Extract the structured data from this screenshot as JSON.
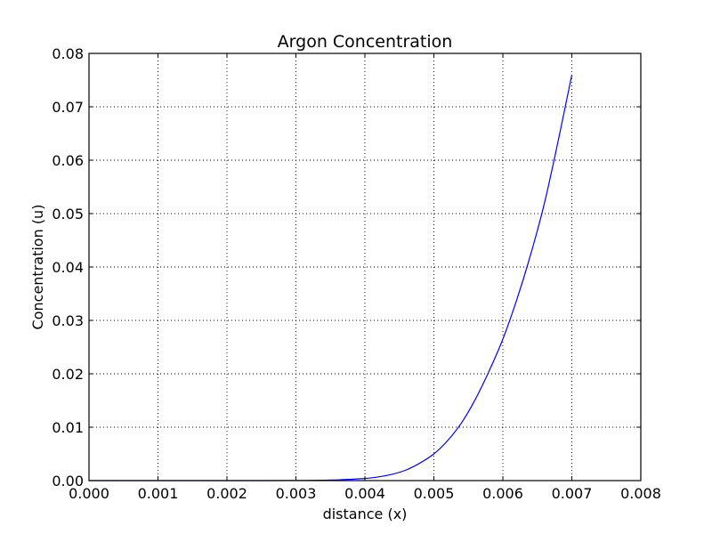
{
  "chart_data": {
    "type": "line",
    "title": "Argon Concentration",
    "xlabel": "distance (x)",
    "ylabel": "Concentration (u)",
    "xlim": [
      0.0,
      0.008
    ],
    "ylim": [
      0.0,
      0.08
    ],
    "x_ticks": [
      0.0,
      0.001,
      0.002,
      0.003,
      0.004,
      0.005,
      0.006,
      0.007,
      0.008
    ],
    "x_tick_labels": [
      "0.000",
      "0.001",
      "0.002",
      "0.003",
      "0.004",
      "0.005",
      "0.006",
      "0.007",
      "0.008"
    ],
    "y_ticks": [
      0.0,
      0.01,
      0.02,
      0.03,
      0.04,
      0.05,
      0.06,
      0.07,
      0.08
    ],
    "y_tick_labels": [
      "0.00",
      "0.01",
      "0.02",
      "0.03",
      "0.04",
      "0.05",
      "0.06",
      "0.07",
      "0.08"
    ],
    "grid": true,
    "series": [
      {
        "color": "#0000ff",
        "x": [
          0.0,
          0.0005,
          0.001,
          0.0015,
          0.002,
          0.0025,
          0.003,
          0.0035,
          0.004,
          0.0042,
          0.0044,
          0.0046,
          0.0048,
          0.005,
          0.0052,
          0.0054,
          0.0056,
          0.0058,
          0.006,
          0.0062,
          0.0064,
          0.0066,
          0.0068,
          0.007
        ],
        "y": [
          0.0,
          0.0,
          0.0,
          0.0,
          0.0,
          0.0,
          2e-05,
          0.0001,
          0.0004,
          0.0007,
          0.0012,
          0.002,
          0.0033,
          0.005,
          0.0075,
          0.0108,
          0.0152,
          0.0205,
          0.0265,
          0.0338,
          0.0422,
          0.0518,
          0.0635,
          0.076
        ]
      }
    ]
  }
}
